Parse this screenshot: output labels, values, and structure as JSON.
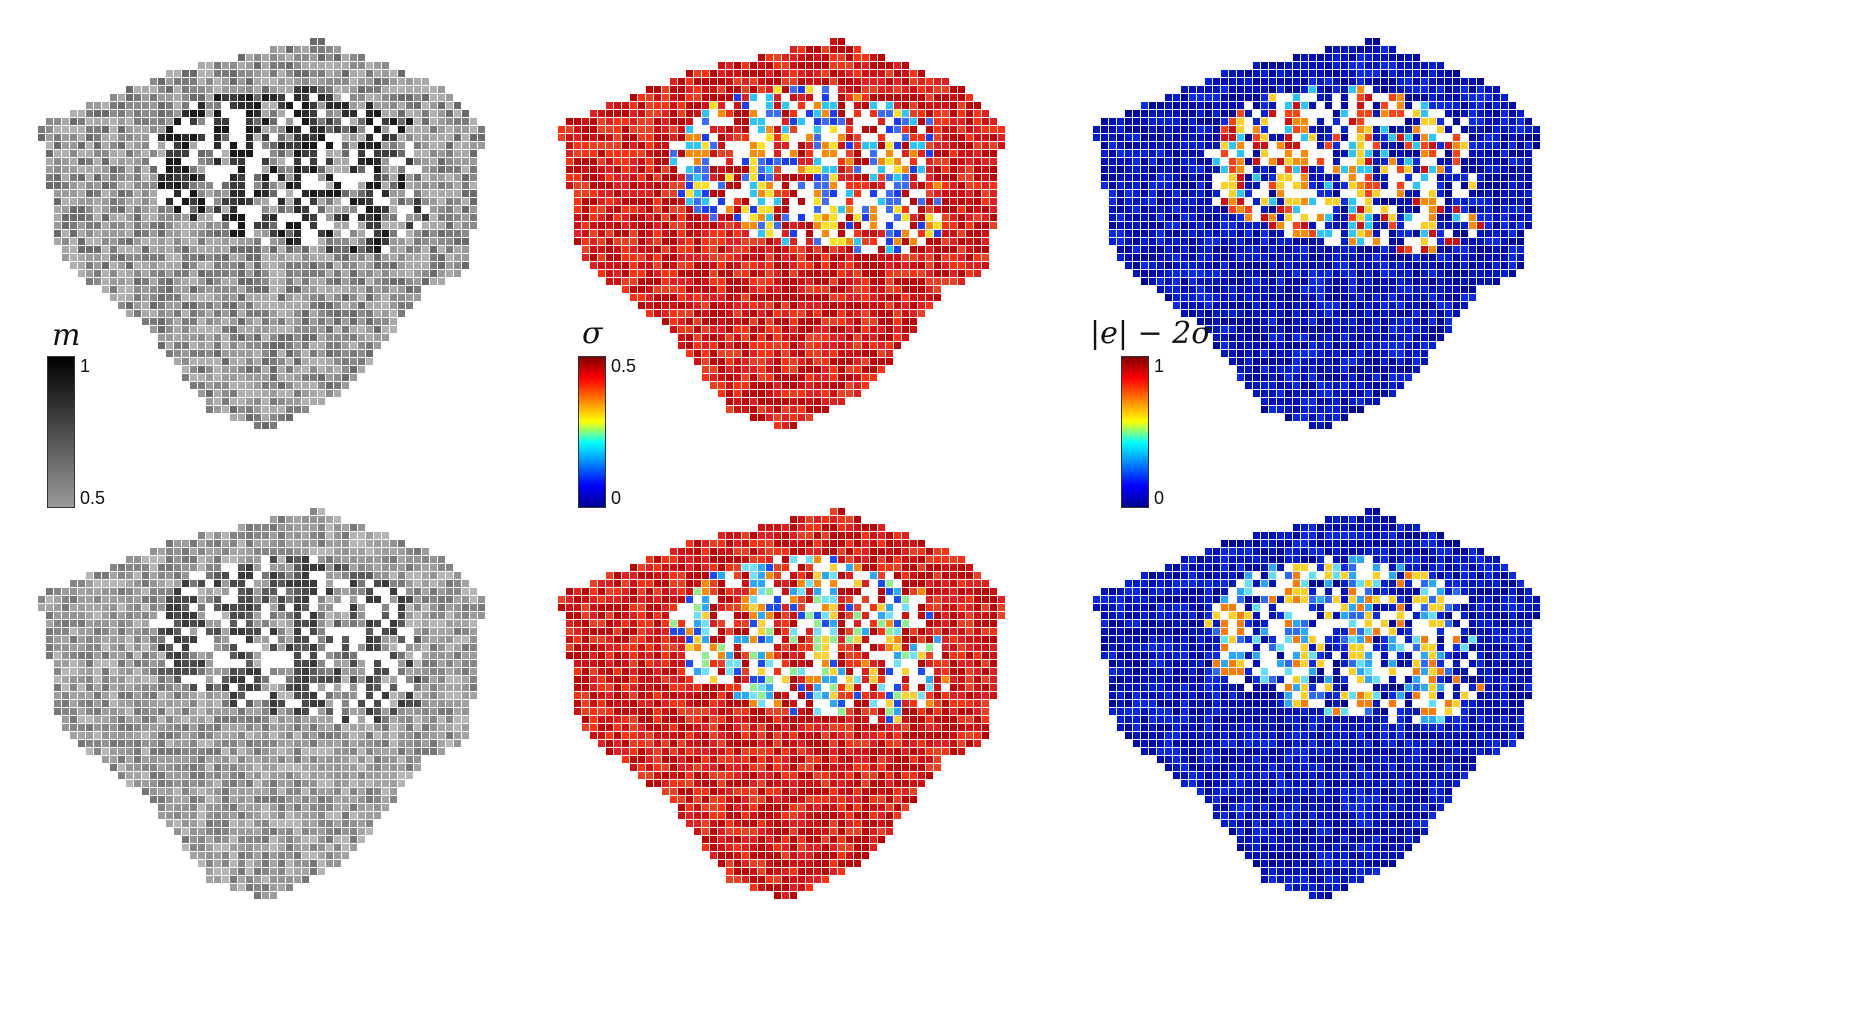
{
  "figure": {
    "columns": [
      {
        "key": "m",
        "colorbar": {
          "title": "m",
          "max_label": "1",
          "min_label": "0.5",
          "colormap": "gray"
        },
        "rows": [
          {
            "palette": [
              "#9a9a9a",
              "#8a8a8a",
              "#a8a8a8",
              "#7a7a7a",
              "#b0b0b0",
              "#6a6a6a"
            ],
            "dark": [
              "#1a1a1a",
              "#2b2b2b",
              "#3c3c3c"
            ]
          },
          {
            "palette": [
              "#a3a3a3",
              "#939393",
              "#b5b5b5",
              "#858585",
              "#9c9c9c",
              "#777777"
            ],
            "dark": [
              "#3a3a3a",
              "#4a4a4a",
              "#5a5a5a"
            ]
          }
        ]
      },
      {
        "key": "sigma",
        "colorbar": {
          "title": "σ",
          "max_label": "0.5",
          "min_label": "0",
          "colormap": "jet"
        },
        "rows": [
          {
            "palette": [
              "#d01010",
              "#e02020",
              "#c00000",
              "#ff3010",
              "#e84020",
              "#b80808"
            ],
            "dark": [
              "#1a3cff",
              "#28c8ff",
              "#ffe020",
              "#ff8a00",
              "#3a6cff"
            ]
          },
          {
            "palette": [
              "#d01010",
              "#e02020",
              "#c00000",
              "#ff3010",
              "#e84020",
              "#b80808"
            ],
            "dark": [
              "#2aa8ff",
              "#70e0ff",
              "#ffd030",
              "#ff8a00",
              "#1a4cff",
              "#90f090"
            ]
          }
        ]
      },
      {
        "key": "err",
        "colorbar": {
          "title": "|e| − 2σ",
          "max_label": "1",
          "min_label": "0",
          "colormap": "jet"
        },
        "rows": [
          {
            "palette": [
              "#0010c0",
              "#0020d8",
              "#000aa8",
              "#0a2ae8",
              "#0018b8",
              "#00089a"
            ],
            "dark": [
              "#d01010",
              "#ff4010",
              "#ffd020",
              "#28c8ff",
              "#ff8a00"
            ]
          },
          {
            "palette": [
              "#0010c0",
              "#0020d8",
              "#000aa8",
              "#0a2ae8",
              "#0018b8",
              "#00089a"
            ],
            "dark": [
              "#28a8ff",
              "#ffd020",
              "#60e0ff",
              "#ff7a00",
              "#2a6aff"
            ]
          }
        ]
      }
    ]
  }
}
